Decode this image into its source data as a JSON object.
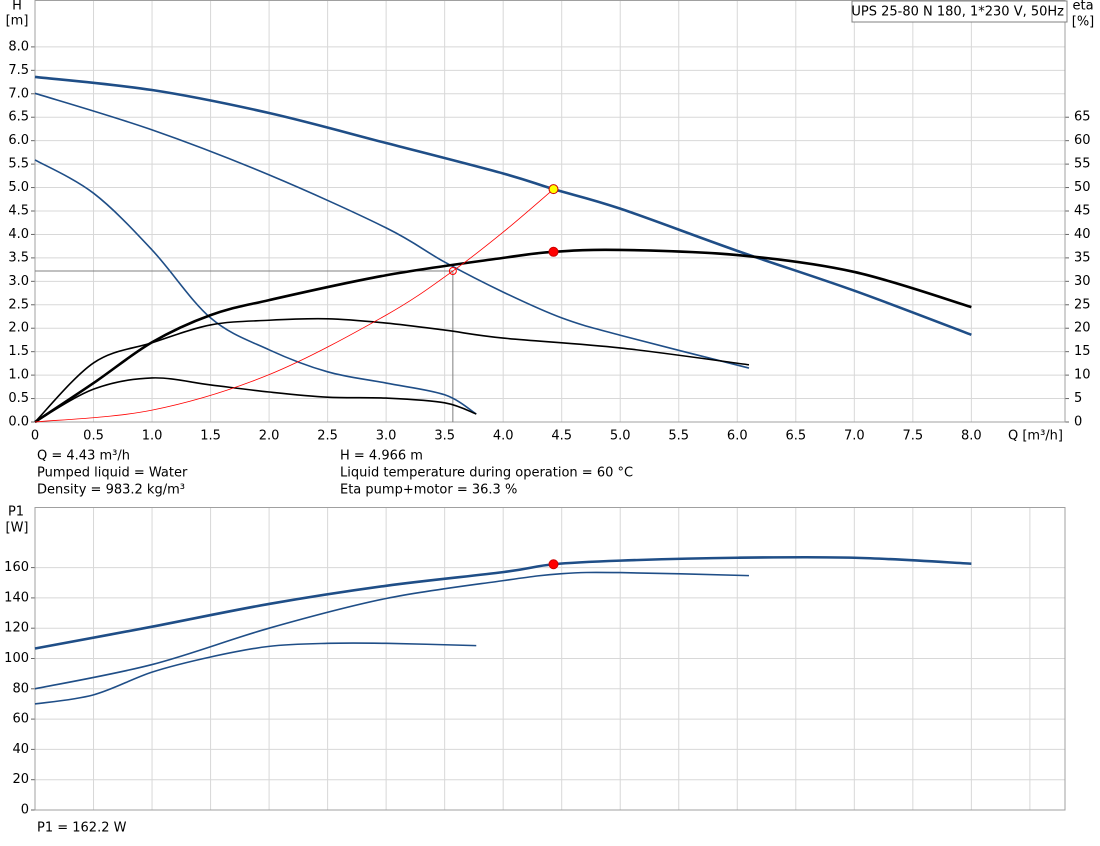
{
  "chart_data": [
    {
      "type": "line",
      "title": "UPS 25-80 N 180, 1*230 V, 50Hz",
      "x_label": "Q [m³/h]",
      "y_label": [
        "H",
        "[m]"
      ],
      "y2_label": [
        "eta",
        "[%]"
      ],
      "xlim": [
        0,
        8.8
      ],
      "xticks": [
        0,
        0.5,
        {
          "value": 1,
          "label": "1.0"
        },
        1.5,
        {
          "value": 2,
          "label": "2.0"
        },
        2.5,
        {
          "value": 3,
          "label": "3.0"
        },
        3.5,
        {
          "value": 4,
          "label": "4.0"
        },
        4.5,
        {
          "value": 5,
          "label": "5.0"
        },
        5.5,
        {
          "value": 6,
          "label": "6.0"
        },
        6.5,
        {
          "value": 7,
          "label": "7.0"
        },
        7.5,
        {
          "value": 8,
          "label": "8.0"
        }
      ],
      "ylim": [
        0,
        9
      ],
      "yticks": [
        {
          "value": 0,
          "label": "0.0"
        },
        0.5,
        {
          "value": 1,
          "label": "1.0"
        },
        1.5,
        {
          "value": 2,
          "label": "2.0"
        },
        2.5,
        {
          "value": 3,
          "label": "3.0"
        },
        3.5,
        {
          "value": 4,
          "label": "4.0"
        },
        4.5,
        {
          "value": 5,
          "label": "5.0"
        },
        5.5,
        {
          "value": 6,
          "label": "6.0"
        },
        6.5,
        {
          "value": 7,
          "label": "7.0"
        },
        7.5,
        {
          "value": 8,
          "label": "8.0"
        }
      ],
      "y2lim": [
        0,
        90
      ],
      "y2ticks": [
        0,
        5,
        10,
        15,
        20,
        25,
        30,
        35,
        40,
        45,
        50,
        55,
        60,
        65
      ],
      "grid": true,
      "series": [
        {
          "color": "#1f4e87",
          "x": [
            0,
            1,
            2,
            3,
            4,
            4.43,
            5,
            6,
            7,
            8
          ],
          "values": [
            7.36,
            7.08,
            6.59,
            5.95,
            5.3,
            4.966,
            4.55,
            3.65,
            2.8,
            1.86
          ]
        },
        {
          "color": "#1f4e87",
          "x": [
            0,
            1,
            2,
            3,
            3.5,
            4,
            4.5,
            5,
            6.1
          ],
          "values": [
            7.01,
            6.23,
            5.27,
            4.14,
            3.41,
            2.77,
            2.22,
            1.85,
            1.15
          ]
        },
        {
          "color": "#1f4e87",
          "x": [
            0,
            0.5,
            1,
            1.5,
            2,
            2.5,
            3,
            3.5,
            3.77
          ],
          "values": [
            5.59,
            4.88,
            3.67,
            2.22,
            1.54,
            1.07,
            0.83,
            0.58,
            0.17
          ]
        },
        {
          "color": "#000000",
          "axis": "y2",
          "x": [
            0,
            0.5,
            1,
            1.5,
            2,
            3,
            4,
            4.43,
            5,
            6,
            7,
            8
          ],
          "values": [
            0,
            8.3,
            17,
            22.8,
            26,
            31.3,
            35,
            36.3,
            36.7,
            35.6,
            32,
            24.5
          ]
        },
        {
          "color": "#000000",
          "axis": "y2",
          "x": [
            0,
            0.5,
            1,
            1.5,
            2,
            2.5,
            3,
            3.5,
            4,
            5,
            6.1
          ],
          "values": [
            0,
            12.6,
            16.9,
            20.7,
            21.7,
            22,
            21.1,
            19.6,
            17.9,
            15.8,
            12.2
          ]
        },
        {
          "color": "#000000",
          "axis": "y2",
          "x": [
            0,
            0.5,
            1,
            1.5,
            2,
            2.5,
            3,
            3.5,
            3.77
          ],
          "values": [
            0,
            7,
            9.4,
            7.9,
            6.4,
            5.3,
            5.1,
            4.1,
            1.7
          ]
        },
        {
          "color": "#ff0000",
          "x": [
            0,
            1,
            2,
            3,
            3.57,
            4,
            4.43
          ],
          "values": [
            0,
            0.253,
            1.01,
            2.28,
            3.22,
            4.05,
            4.966
          ]
        }
      ],
      "markers": [
        {
          "x": 4.43,
          "y": 4.966,
          "color": "#ffff00"
        },
        {
          "x": 4.43,
          "y": 36.3,
          "axis": "y2",
          "color": "#ff0000"
        }
      ],
      "guide": {
        "x": 3.57,
        "y": 3.22,
        "color": "#ff0000"
      },
      "annotations": [
        "Q = 4.43 m³/h",
        "Pumped liquid = Water",
        "Density = 983.2 kg/m³",
        "H = 4.966 m",
        "Liquid temperature during operation = 60 °C",
        "Eta pump+motor = 36.3 %"
      ]
    },
    {
      "type": "line",
      "y_label": [
        "P1",
        "[W]"
      ],
      "xlim": [
        0,
        8.8
      ],
      "xgrid": [
        0,
        0.5,
        1,
        1.5,
        2,
        2.5,
        3,
        3.5,
        4,
        4.5,
        5,
        5.5,
        6,
        6.5,
        7,
        7.5,
        8,
        8.5
      ],
      "ylim": [
        0,
        200
      ],
      "yticks": [
        0,
        20,
        40,
        60,
        80,
        100,
        120,
        140,
        160
      ],
      "grid": true,
      "series": [
        {
          "color": "#1f4e87",
          "x": [
            0,
            1,
            2,
            3,
            4,
            4.43,
            5,
            6,
            7,
            8
          ],
          "values": [
            106.6,
            121,
            136,
            148,
            157,
            162.2,
            164.6,
            166.5,
            166.5,
            162.6
          ]
        },
        {
          "color": "#1f4e87",
          "x": [
            0,
            1,
            2,
            3,
            4,
            4.5,
            5,
            6.1
          ],
          "values": [
            80,
            96,
            120,
            139.6,
            151.4,
            156,
            156.7,
            154.7
          ]
        },
        {
          "color": "#1f4e87",
          "x": [
            0,
            0.5,
            1,
            1.5,
            2,
            2.5,
            3,
            3.77
          ],
          "values": [
            70,
            76,
            91,
            101,
            108,
            110,
            110,
            108.5
          ]
        }
      ],
      "markers": [
        {
          "x": 4.43,
          "y": 162.2,
          "color": "#ff0000"
        }
      ],
      "annotations": [
        "P1 = 162.2 W"
      ]
    }
  ]
}
